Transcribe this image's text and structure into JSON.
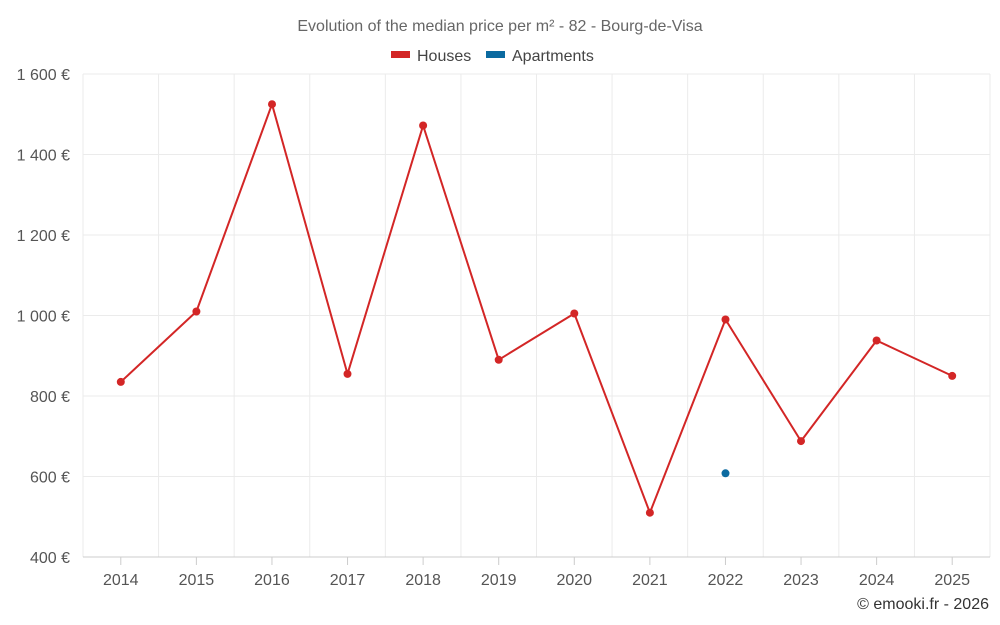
{
  "chart_data": {
    "type": "line",
    "title": "Evolution of the median price per m² - 82 - Bourg-de-Visa",
    "categories": [
      "2014",
      "2015",
      "2016",
      "2017",
      "2018",
      "2019",
      "2020",
      "2021",
      "2022",
      "2023",
      "2024",
      "2025"
    ],
    "y_ticks": [
      "400 €",
      "600 €",
      "800 €",
      "1 000 €",
      "1 200 €",
      "1 400 €",
      "1 600 €"
    ],
    "ylim": [
      400,
      1600
    ],
    "grid": true,
    "legend_position": "top-center",
    "series": [
      {
        "name": "Houses",
        "color": "#d32626",
        "values": [
          835,
          1010,
          1525,
          855,
          1472,
          890,
          1005,
          510,
          990,
          688,
          938,
          850
        ]
      },
      {
        "name": "Apartments",
        "color": "#0b6aa0",
        "values": [
          null,
          null,
          null,
          null,
          null,
          null,
          null,
          null,
          608,
          null,
          null,
          null
        ]
      }
    ]
  },
  "footer": {
    "credit": "© emooki.fr - 2026"
  }
}
